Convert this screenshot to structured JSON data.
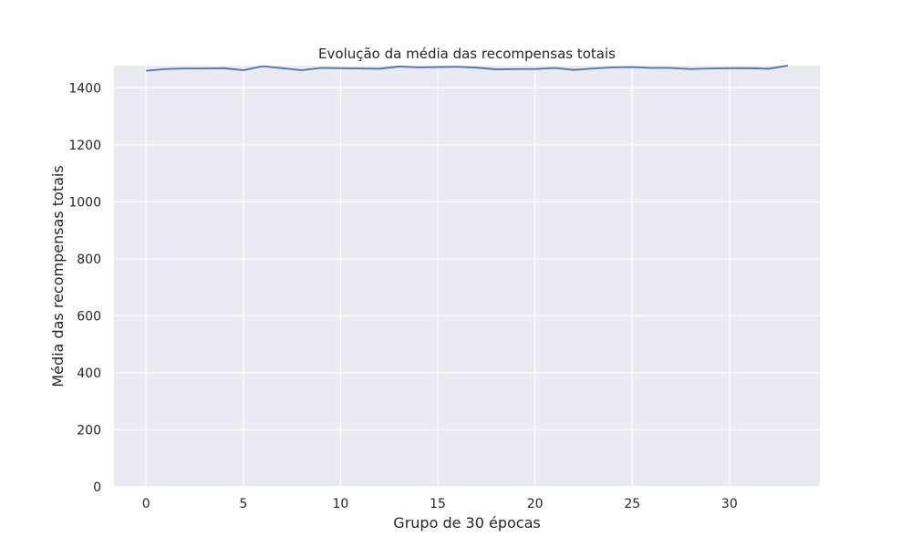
{
  "chart_data": {
    "type": "line",
    "title": "Evolução da média das recompensas totais",
    "xlabel": "Grupo de 30 épocas",
    "ylabel": "Média das recompensas totais",
    "xlim": [
      -1.65,
      34.65
    ],
    "ylim": [
      0,
      1478
    ],
    "xticks": [
      0,
      5,
      10,
      15,
      20,
      25,
      30
    ],
    "yticks": [
      0,
      200,
      400,
      600,
      800,
      1000,
      1200,
      1400
    ],
    "grid": true,
    "background": "#eaeaf2",
    "grid_color": "#ffffff",
    "series": [
      {
        "color": "#4c72b0",
        "x": [
          0,
          1,
          2,
          3,
          4,
          5,
          6,
          7,
          8,
          9,
          10,
          11,
          12,
          13,
          14,
          15,
          16,
          17,
          18,
          19,
          20,
          21,
          22,
          23,
          24,
          25,
          26,
          27,
          28,
          29,
          30,
          31,
          32,
          33
        ],
        "y": [
          1460,
          1466,
          1468,
          1468,
          1469,
          1462,
          1476,
          1469,
          1462,
          1470,
          1469,
          1468,
          1467,
          1475,
          1472,
          1473,
          1474,
          1471,
          1465,
          1466,
          1466,
          1470,
          1463,
          1468,
          1472,
          1473,
          1470,
          1470,
          1466,
          1468,
          1469,
          1469,
          1467,
          1478
        ]
      }
    ]
  }
}
